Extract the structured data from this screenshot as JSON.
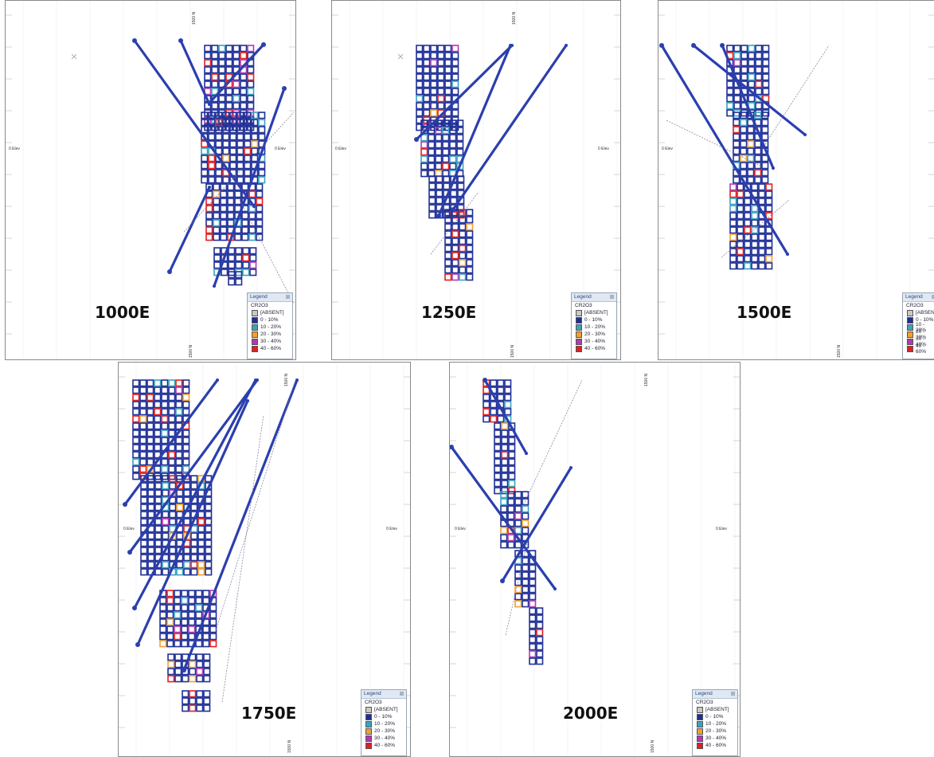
{
  "figure": {
    "legend": {
      "title": "Legend",
      "variable": "CR2O3",
      "classes": [
        {
          "label": "[ABSENT]",
          "color": "#c8c8c8"
        },
        {
          "label": "0 - 10%",
          "color": "#1f2f96"
        },
        {
          "label": "10 - 20%",
          "color": "#3aa3c0"
        },
        {
          "label": "20 - 30%",
          "color": "#f0a030"
        },
        {
          "label": "30 - 40%",
          "color": "#b03ab0"
        },
        {
          "label": "40 - 60%",
          "color": "#e02020"
        }
      ]
    },
    "elevation_zero_label": "0 Elev",
    "northing_key_label": "1500 N",
    "panels": [
      {
        "section": "1000E"
      },
      {
        "section": "1250E"
      },
      {
        "section": "1500E"
      },
      {
        "section": "1750E"
      },
      {
        "section": "2000E"
      }
    ]
  }
}
